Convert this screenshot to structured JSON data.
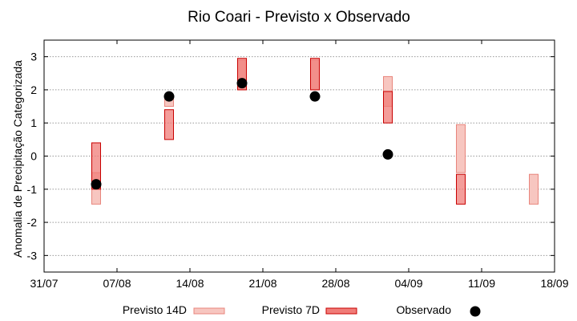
{
  "chart_data": {
    "type": "range-bar",
    "title": "Rio Coari - Previsto x Observado",
    "xlabel": "",
    "ylabel": "Anomalia de Precipitação Categorizada",
    "x_ticks": [
      "31/07",
      "07/08",
      "14/08",
      "21/08",
      "28/08",
      "04/09",
      "11/09",
      "18/09"
    ],
    "y_ticks": [
      "3",
      "2",
      "1",
      "0",
      "-1",
      "-2",
      "-3"
    ],
    "ylim": [
      -3.5,
      3.5
    ],
    "grid": true,
    "legend_position": "bottom",
    "colors": {
      "forecast_14d_fill": "#f7c6c0",
      "forecast_14d_edge": "#e8857c",
      "forecast_7d_fill": "#f07c78",
      "forecast_7d_edge": "#c80000",
      "observed": "#000000",
      "grid": "#999999"
    },
    "series": [
      {
        "name": "Previsto 14D",
        "kind": "range",
        "points": [
          {
            "date": "05/08",
            "low": -1.45,
            "high": -0.5
          },
          {
            "date": "12/08",
            "low": 1.5,
            "high": 1.8
          },
          {
            "date": "19/08",
            "low": 2.0,
            "high": 2.9
          },
          {
            "date": "26/08",
            "low": 2.0,
            "high": 2.9
          },
          {
            "date": "02/09",
            "low": 1.5,
            "high": 2.4
          },
          {
            "date": "09/09",
            "low": -0.5,
            "high": 0.95
          },
          {
            "date": "16/09",
            "low": -1.45,
            "high": -0.55
          }
        ]
      },
      {
        "name": "Previsto 7D",
        "kind": "range",
        "points": [
          {
            "date": "05/08",
            "low": -1.0,
            "high": 0.4
          },
          {
            "date": "12/08",
            "low": 0.5,
            "high": 1.4
          },
          {
            "date": "19/08",
            "low": 2.0,
            "high": 2.95
          },
          {
            "date": "26/08",
            "low": 2.0,
            "high": 2.95
          },
          {
            "date": "02/09",
            "low": 1.0,
            "high": 1.95
          },
          {
            "date": "09/09",
            "low": -1.45,
            "high": -0.55
          }
        ]
      },
      {
        "name": "Observado",
        "kind": "point",
        "points": [
          {
            "date": "05/08",
            "value": -0.85
          },
          {
            "date": "12/08",
            "value": 1.8
          },
          {
            "date": "19/08",
            "value": 2.2
          },
          {
            "date": "26/08",
            "value": 1.8
          },
          {
            "date": "02/09",
            "value": 0.05
          }
        ]
      }
    ]
  }
}
